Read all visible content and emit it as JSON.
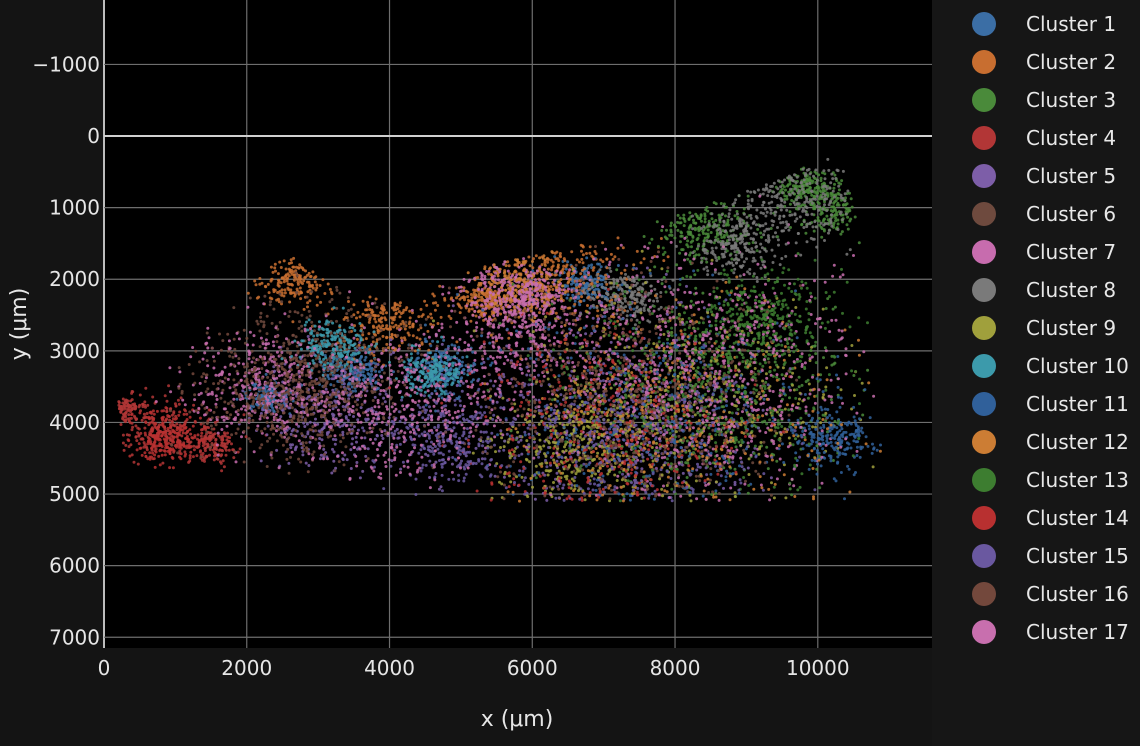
{
  "chart_data": {
    "type": "scatter",
    "title": "",
    "xlabel": "x (μm)",
    "ylabel": "y (μm)",
    "xlim": [
      0,
      11600
    ],
    "ylim": [
      -1900,
      7150
    ],
    "y_reversed": true,
    "grid": true,
    "x_ticks": [
      0,
      2000,
      4000,
      6000,
      8000,
      10000
    ],
    "y_ticks": [
      -1000,
      0,
      1000,
      2000,
      3000,
      4000,
      5000,
      6000,
      7000
    ],
    "x_tick_labels": [
      "0",
      "2000",
      "4000",
      "6000",
      "8000",
      "10000"
    ],
    "y_tick_labels": [
      "−1000",
      "0",
      "1000",
      "2000",
      "3000",
      "4000",
      "5000",
      "6000",
      "7000"
    ],
    "legend_position": "right",
    "series": [
      {
        "name": "Cluster 1",
        "color": "#3b6ea5",
        "regions": [
          [
            3500,
            3300,
            350
          ],
          [
            4750,
            3250,
            400
          ],
          [
            6750,
            2050,
            320
          ],
          [
            2300,
            3650,
            250
          ]
        ]
      },
      {
        "name": "Cluster 2",
        "color": "#c86e30",
        "regions": [
          [
            2650,
            2000,
            400
          ],
          [
            4000,
            2550,
            600
          ],
          [
            6300,
            1850,
            900
          ],
          [
            5300,
            2300,
            300
          ]
        ]
      },
      {
        "name": "Cluster 3",
        "color": "#4a8a3a",
        "regions": [
          [
            8400,
            1300,
            600
          ],
          [
            10200,
            1000,
            400
          ],
          [
            8600,
            3600,
            1600
          ],
          [
            9800,
            700,
            300
          ]
        ]
      },
      {
        "name": "Cluster 4",
        "color": "#b23636",
        "regions": [
          [
            800,
            4100,
            500
          ],
          [
            300,
            3800,
            200
          ],
          [
            1500,
            4300,
            300
          ]
        ]
      },
      {
        "name": "Cluster 5",
        "color": "#7d5ea8",
        "regions": [
          [
            7000,
            3800,
            1800
          ],
          [
            3200,
            3900,
            900
          ]
        ]
      },
      {
        "name": "Cluster 6",
        "color": "#6e4a3e",
        "regions": [
          [
            3000,
            3200,
            1200
          ],
          [
            7500,
            4000,
            1600
          ]
        ]
      },
      {
        "name": "Cluster 7",
        "color": "#c76cae",
        "regions": [
          [
            5800,
            2600,
            900
          ],
          [
            2200,
            3500,
            900
          ],
          [
            8000,
            3500,
            1800
          ]
        ]
      },
      {
        "name": "Cluster 8",
        "color": "#7a7a7a",
        "regions": [
          [
            9600,
            900,
            700
          ],
          [
            8900,
            1500,
            500
          ],
          [
            7300,
            2200,
            400
          ]
        ]
      },
      {
        "name": "Cluster 9",
        "color": "#a0a03c",
        "regions": [
          [
            8200,
            3800,
            1800
          ],
          [
            6500,
            4300,
            900
          ]
        ]
      },
      {
        "name": "Cluster 10",
        "color": "#3c9aab",
        "regions": [
          [
            3200,
            2950,
            400
          ],
          [
            4600,
            3300,
            350
          ]
        ]
      },
      {
        "name": "Cluster 11",
        "color": "#30609a",
        "regions": [
          [
            7700,
            3900,
            1900
          ],
          [
            10200,
            4200,
            500
          ]
        ]
      },
      {
        "name": "Cluster 12",
        "color": "#cc7d34",
        "regions": [
          [
            8100,
            4000,
            1800
          ],
          [
            5800,
            2100,
            500
          ]
        ]
      },
      {
        "name": "Cluster 13",
        "color": "#3d7d30",
        "regions": [
          [
            8300,
            3500,
            1800
          ],
          [
            9200,
            2500,
            700
          ]
        ]
      },
      {
        "name": "Cluster 14",
        "color": "#b83030",
        "regions": [
          [
            900,
            4200,
            400
          ],
          [
            7000,
            4200,
            1600
          ]
        ]
      },
      {
        "name": "Cluster 15",
        "color": "#6a58a0",
        "regions": [
          [
            7300,
            4300,
            1600
          ],
          [
            4800,
            4200,
            700
          ]
        ]
      },
      {
        "name": "Cluster 16",
        "color": "#73483c",
        "regions": [
          [
            7200,
            3500,
            1800
          ],
          [
            2500,
            3600,
            1000
          ]
        ]
      },
      {
        "name": "Cluster 17",
        "color": "#c86fae",
        "regions": [
          [
            4200,
            3800,
            1200
          ],
          [
            8500,
            3300,
            1800
          ],
          [
            5900,
            2200,
            500
          ]
        ]
      }
    ]
  }
}
